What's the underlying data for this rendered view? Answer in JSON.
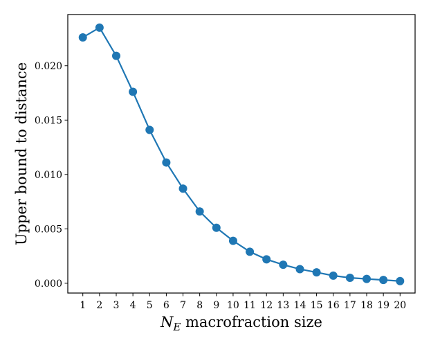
{
  "chart_data": {
    "type": "line",
    "title": "",
    "xlabel": "N_E macrofraction size",
    "xlabel_var": "N",
    "xlabel_sub": "E",
    "xlabel_rest": " macrofraction size",
    "ylabel": "Upper bound to distance",
    "x": [
      1,
      2,
      3,
      4,
      5,
      6,
      7,
      8,
      9,
      10,
      11,
      12,
      13,
      14,
      15,
      16,
      17,
      18,
      19,
      20
    ],
    "series": [
      {
        "values": [
          0.0226,
          0.0235,
          0.0209,
          0.0176,
          0.0141,
          0.0111,
          0.0087,
          0.0066,
          0.0051,
          0.0039,
          0.0029,
          0.0022,
          0.0017,
          0.0013,
          0.001,
          0.0007,
          0.0005,
          0.0004,
          0.0003,
          0.0002
        ],
        "color": "#1f77b4",
        "marker": "circle"
      }
    ],
    "xlim": [
      0.1,
      20.9
    ],
    "ylim": [
      -0.0009,
      0.0247
    ],
    "xticks": [
      "1",
      "2",
      "3",
      "4",
      "5",
      "6",
      "7",
      "8",
      "9",
      "10",
      "11",
      "12",
      "13",
      "14",
      "15",
      "16",
      "17",
      "18",
      "19",
      "20"
    ],
    "yticks": [
      {
        "value": 0.0,
        "label": "0.000"
      },
      {
        "value": 0.005,
        "label": "0.005"
      },
      {
        "value": 0.01,
        "label": "0.010"
      },
      {
        "value": 0.015,
        "label": "0.015"
      },
      {
        "value": 0.02,
        "label": "0.020"
      }
    ],
    "grid": false,
    "legend": "none"
  }
}
